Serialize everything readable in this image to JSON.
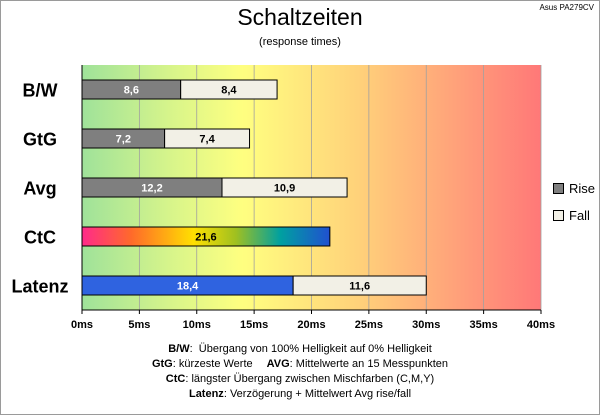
{
  "header": {
    "title": "Schaltzeiten",
    "subtitle": "(response times)",
    "model": "Asus PA279CV"
  },
  "legend": {
    "rise_label": "Rise",
    "fall_label": "Fall",
    "rise_color": "#7f7f7f",
    "fall_color": "#f2f0e6"
  },
  "chart_data": {
    "type": "bar",
    "orientation": "horizontal",
    "stacked": true,
    "categories": [
      "B/W",
      "GtG",
      "Avg",
      "CtC",
      "Latenz"
    ],
    "series": [
      {
        "name": "Rise",
        "values": [
          8.6,
          7.2,
          12.2,
          21.6,
          18.4
        ]
      },
      {
        "name": "Fall",
        "values": [
          8.4,
          7.4,
          10.9,
          null,
          11.6
        ]
      }
    ],
    "category_styles": {
      "CtC": "multicolor gradient single bar",
      "Latenz": "blue first segment"
    },
    "xlim": [
      0,
      40
    ],
    "x_ticks": [
      0,
      5,
      10,
      15,
      20,
      25,
      30,
      35,
      40
    ],
    "x_tick_suffix": "ms",
    "grid": true,
    "background": "green-yellow-red gradient",
    "legend_position": "right"
  },
  "notes": [
    {
      "term": "B/W",
      "text": "Übergang von 100% Helligkeit auf 0% Helligkeit"
    },
    {
      "term": "GtG",
      "text": "kürzeste Werte"
    },
    {
      "term": "AVG",
      "text": "Mittelwerte  an 15 Messpunkten"
    },
    {
      "term": "CtC",
      "text": "längster Übergang zwischen Mischfarben (C,M,Y)"
    },
    {
      "term": "Latenz",
      "text": "Verzögerung  + Mittelwert Avg rise/fall"
    }
  ]
}
